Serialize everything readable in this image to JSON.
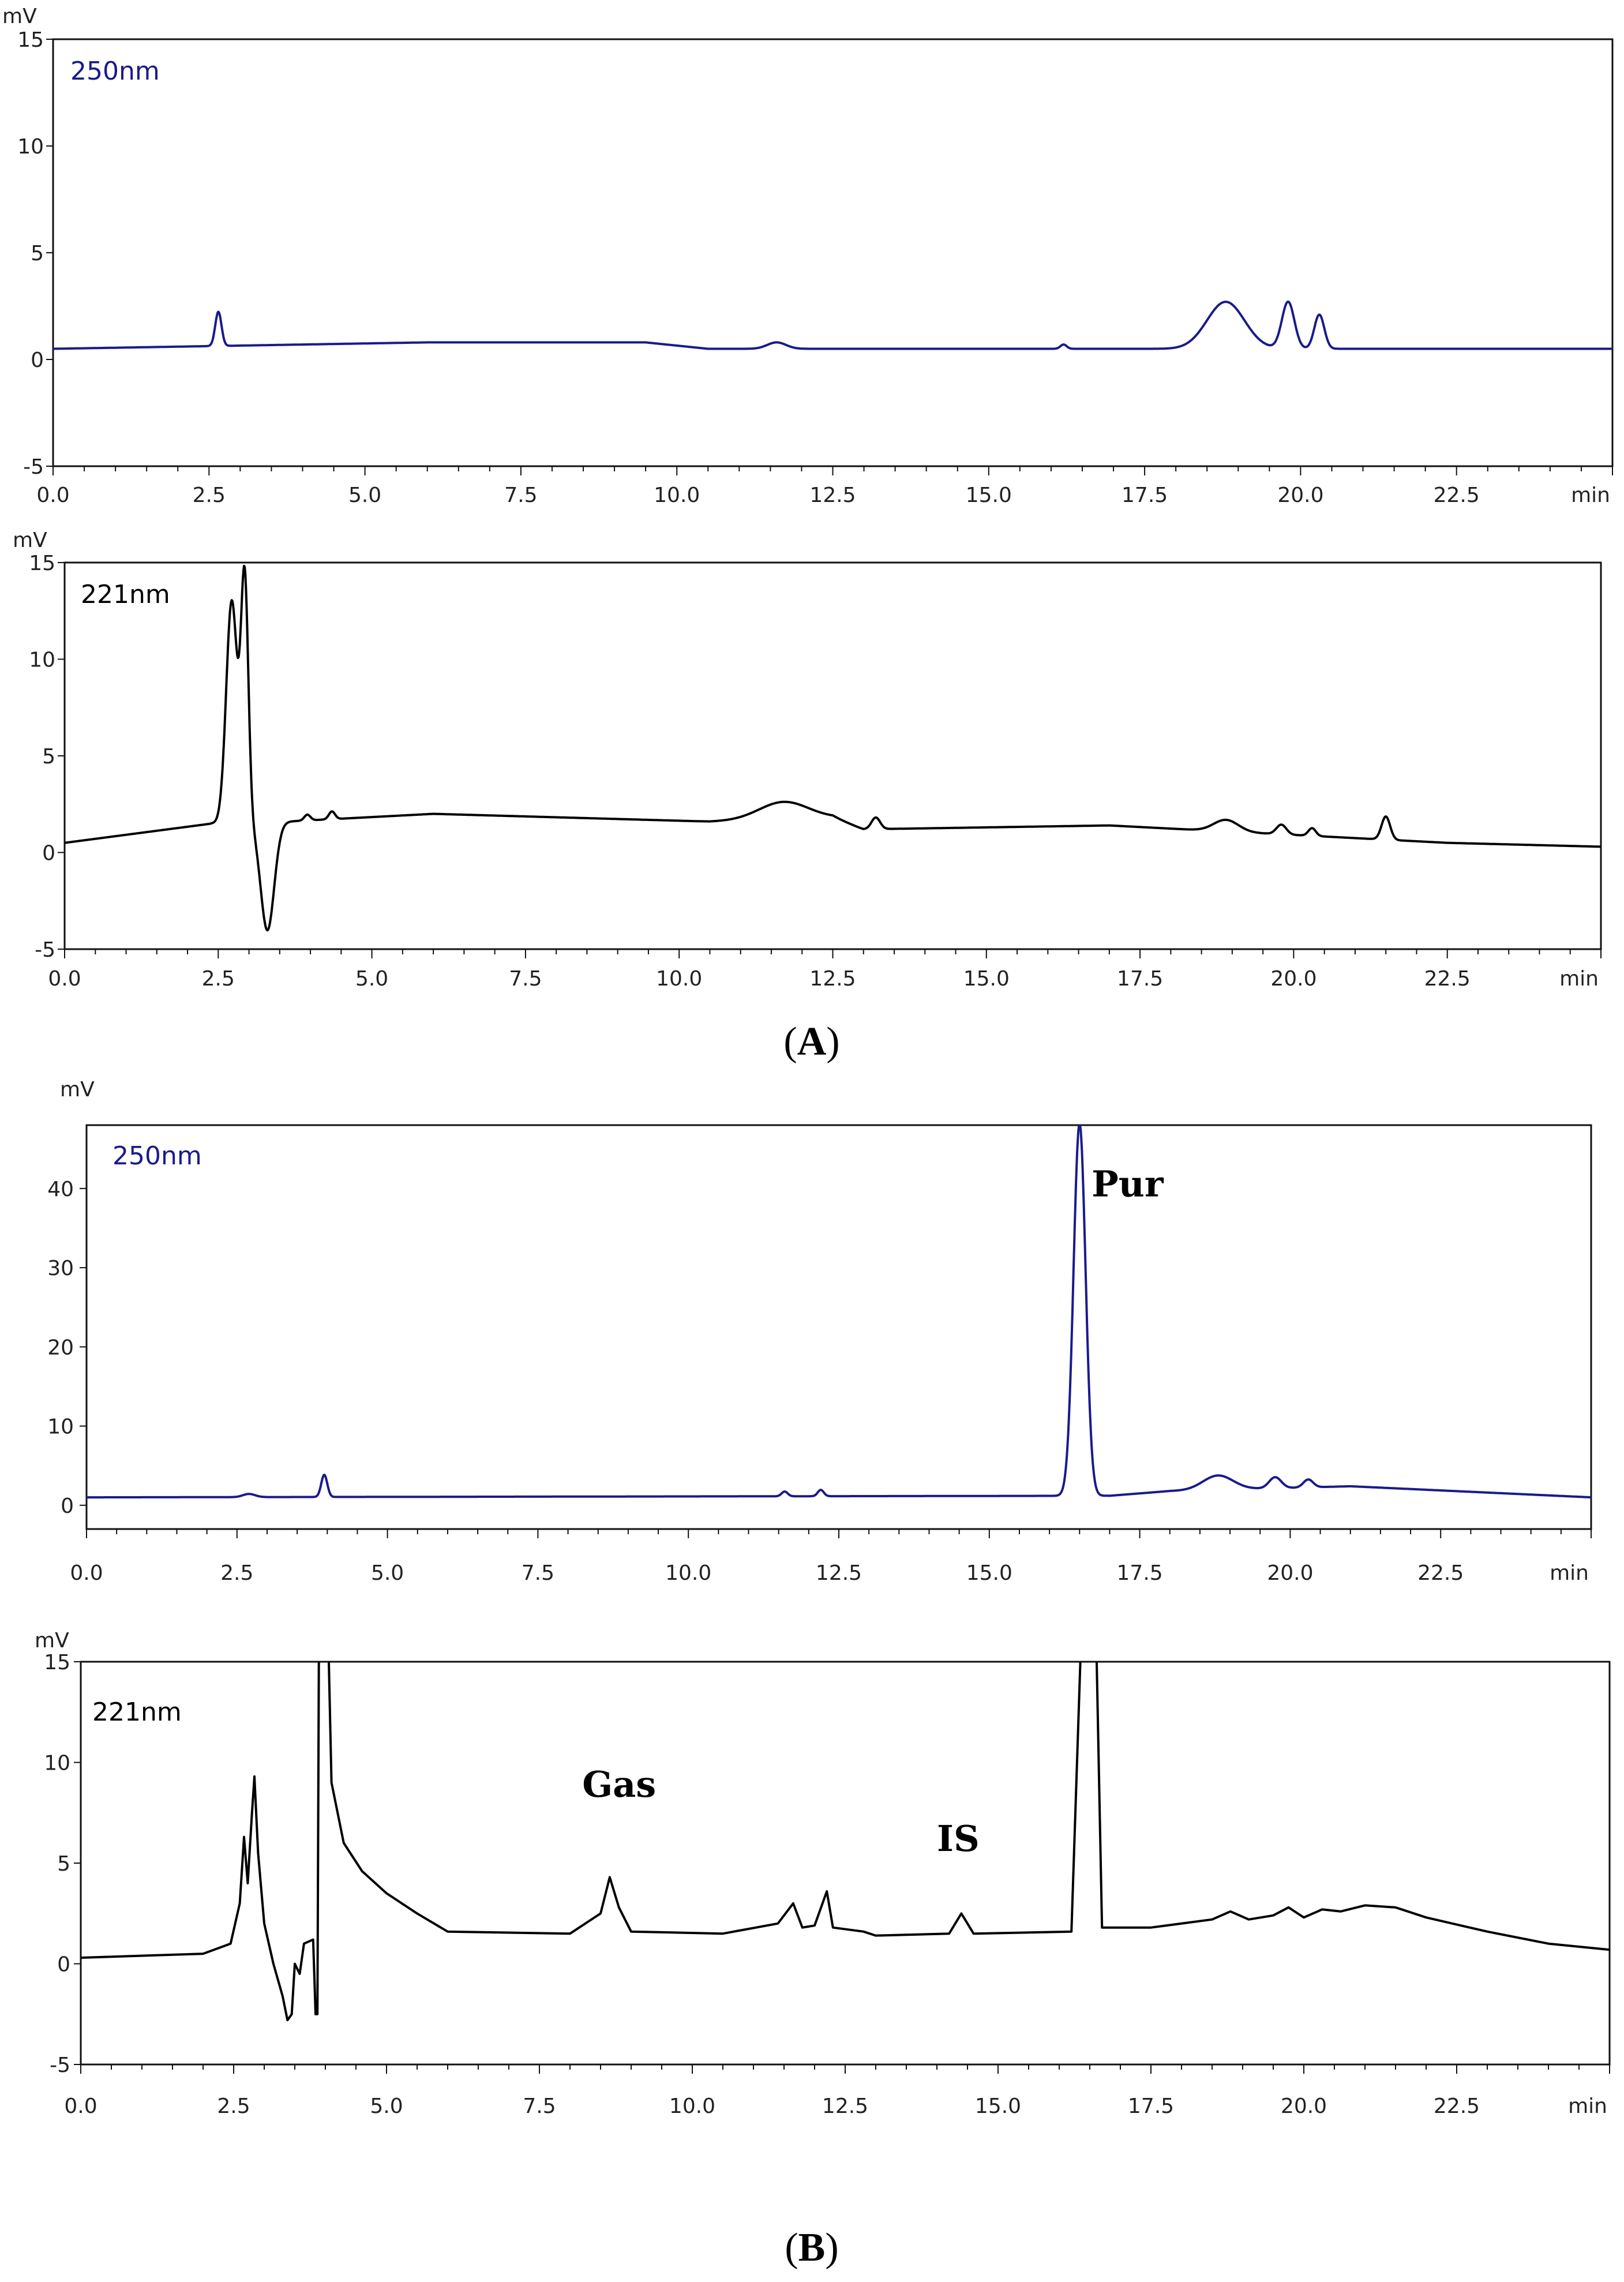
{
  "colors": {
    "blue": "#1a1a8c",
    "black": "#000000"
  },
  "panels": [
    {
      "open": "(",
      "letter": "A",
      "close": ")"
    },
    {
      "open": "(",
      "letter": "B",
      "close": ")"
    }
  ],
  "chart_data": [
    {
      "type": "line",
      "panel": "A",
      "label": "250nm",
      "color": "#1a1a8c",
      "ylabel": "mV",
      "xlabel": "min",
      "xlim": [
        0,
        25
      ],
      "ylim": [
        -5,
        15
      ],
      "xticks": [
        "0.0",
        "2.5",
        "5.0",
        "7.5",
        "10.0",
        "12.5",
        "15.0",
        "17.5",
        "20.0",
        "22.5"
      ],
      "yticks": [
        "-5",
        "0",
        "5",
        "10",
        "15"
      ],
      "baseline": [
        [
          0,
          0.5
        ],
        [
          6,
          0.8
        ],
        [
          9.5,
          0.8
        ],
        [
          10.5,
          0.5
        ],
        [
          25,
          0.5
        ]
      ],
      "peaks": [
        [
          2.65,
          1.6,
          0.05
        ],
        [
          11.6,
          0.3,
          0.15
        ],
        [
          16.2,
          0.2,
          0.05
        ],
        [
          18.8,
          2.2,
          0.3
        ],
        [
          19.8,
          2.2,
          0.1
        ],
        [
          20.3,
          1.6,
          0.08
        ]
      ],
      "annotations": []
    },
    {
      "type": "line",
      "panel": "A",
      "label": "221nm",
      "color": "#000000",
      "ylabel": "mV",
      "xlabel": "min",
      "xlim": [
        0,
        25
      ],
      "ylim": [
        -5,
        15
      ],
      "xticks": [
        "0.0",
        "2.5",
        "5.0",
        "7.5",
        "10.0",
        "12.5",
        "15.0",
        "17.5",
        "20.0",
        "22.5"
      ],
      "yticks": [
        "-5",
        "0",
        "5",
        "10",
        "15"
      ],
      "baseline": [
        [
          0,
          0.5
        ],
        [
          2.4,
          1.5
        ],
        [
          3.6,
          1.6
        ],
        [
          6,
          2.0
        ],
        [
          10.5,
          1.6
        ],
        [
          12.5,
          1.8
        ],
        [
          13.0,
          1.2
        ],
        [
          17,
          1.4
        ],
        [
          22.5,
          0.5
        ],
        [
          25,
          0.3
        ]
      ],
      "peaks": [
        [
          2.72,
          11.5,
          0.09
        ],
        [
          2.93,
          12.5,
          0.06
        ],
        [
          3.3,
          -5.6,
          0.11
        ],
        [
          3.95,
          0.3,
          0.05
        ],
        [
          4.35,
          0.4,
          0.05
        ],
        [
          11.7,
          0.9,
          0.4
        ],
        [
          13.2,
          0.6,
          0.07
        ],
        [
          18.9,
          0.6,
          0.2
        ],
        [
          19.8,
          0.5,
          0.08
        ],
        [
          20.3,
          0.4,
          0.06
        ],
        [
          21.5,
          1.2,
          0.07
        ]
      ],
      "annotations": []
    },
    {
      "type": "line",
      "panel": "B",
      "label": "250nm",
      "color": "#1a1a8c",
      "ylabel": "mV",
      "xlabel": "min",
      "xlim": [
        0,
        25
      ],
      "ylim": [
        -3,
        48
      ],
      "xticks": [
        "0.0",
        "2.5",
        "5.0",
        "7.5",
        "10.0",
        "12.5",
        "15.0",
        "17.5",
        "20.0",
        "22.5"
      ],
      "yticks": [
        "0",
        "10",
        "20",
        "30",
        "40"
      ],
      "baseline": [
        [
          0,
          1
        ],
        [
          17,
          1.2
        ],
        [
          18,
          1.8
        ],
        [
          21,
          2.4
        ],
        [
          25,
          1.0
        ]
      ],
      "peaks": [
        [
          2.7,
          0.4,
          0.1
        ],
        [
          3.95,
          2.8,
          0.05
        ],
        [
          11.6,
          0.6,
          0.05
        ],
        [
          12.2,
          0.8,
          0.05
        ],
        [
          16.5,
          47,
          0.1
        ],
        [
          18.8,
          1.8,
          0.25
        ],
        [
          19.75,
          1.4,
          0.1
        ],
        [
          20.3,
          1.0,
          0.08
        ]
      ],
      "annotations": [
        {
          "text": "Pur",
          "x": 16.7,
          "y": 39
        }
      ]
    },
    {
      "type": "line",
      "panel": "B",
      "label": "221nm",
      "color": "#000000",
      "ylabel": "mV",
      "xlabel": "min",
      "xlim": [
        0,
        25
      ],
      "ylim": [
        -5,
        15
      ],
      "xticks": [
        "0.0",
        "2.5",
        "5.0",
        "7.5",
        "10.0",
        "12.5",
        "15.0",
        "17.5",
        "20.0",
        "22.5"
      ],
      "yticks": [
        "-5",
        "0",
        "5",
        "10",
        "15"
      ],
      "points": [
        [
          0,
          0.3
        ],
        [
          2.0,
          0.5
        ],
        [
          2.45,
          1.0
        ],
        [
          2.6,
          3.0
        ],
        [
          2.67,
          6.3
        ],
        [
          2.73,
          4.0
        ],
        [
          2.8,
          7.5
        ],
        [
          2.84,
          9.3
        ],
        [
          2.9,
          5.5
        ],
        [
          3.0,
          2.0
        ],
        [
          3.15,
          0.0
        ],
        [
          3.3,
          -1.6
        ],
        [
          3.38,
          -2.8
        ],
        [
          3.45,
          -2.5
        ],
        [
          3.5,
          0.0
        ],
        [
          3.58,
          -0.5
        ],
        [
          3.65,
          1.0
        ],
        [
          3.8,
          1.2
        ],
        [
          3.84,
          -2.5
        ],
        [
          3.87,
          -2.5
        ],
        [
          3.9,
          20
        ],
        [
          4.02,
          20
        ],
        [
          4.1,
          9.0
        ],
        [
          4.3,
          6.0
        ],
        [
          4.6,
          4.6
        ],
        [
          5.0,
          3.5
        ],
        [
          5.5,
          2.5
        ],
        [
          6.0,
          1.6
        ],
        [
          8.0,
          1.5
        ],
        [
          8.5,
          2.5
        ],
        [
          8.65,
          4.3
        ],
        [
          8.8,
          2.8
        ],
        [
          9.0,
          1.6
        ],
        [
          10.5,
          1.5
        ],
        [
          11.4,
          2.0
        ],
        [
          11.65,
          3.0
        ],
        [
          11.8,
          1.8
        ],
        [
          12.0,
          1.9
        ],
        [
          12.2,
          3.6
        ],
        [
          12.3,
          1.8
        ],
        [
          12.8,
          1.6
        ],
        [
          13.0,
          1.4
        ],
        [
          14.2,
          1.5
        ],
        [
          14.4,
          2.5
        ],
        [
          14.6,
          1.5
        ],
        [
          16.2,
          1.6
        ],
        [
          16.4,
          20
        ],
        [
          16.58,
          20
        ],
        [
          16.7,
          1.8
        ],
        [
          17.5,
          1.8
        ],
        [
          18.5,
          2.2
        ],
        [
          18.8,
          2.6
        ],
        [
          19.1,
          2.2
        ],
        [
          19.5,
          2.4
        ],
        [
          19.75,
          2.8
        ],
        [
          20.0,
          2.3
        ],
        [
          20.3,
          2.7
        ],
        [
          20.6,
          2.6
        ],
        [
          21.0,
          2.9
        ],
        [
          21.5,
          2.8
        ],
        [
          22.0,
          2.3
        ],
        [
          23.0,
          1.6
        ],
        [
          24.0,
          1.0
        ],
        [
          25.0,
          0.7
        ]
      ],
      "annotations": [
        {
          "text": "Gas",
          "x": 8.2,
          "y": 8.3
        },
        {
          "text": "IS",
          "x": 14.0,
          "y": 5.6
        }
      ]
    }
  ]
}
